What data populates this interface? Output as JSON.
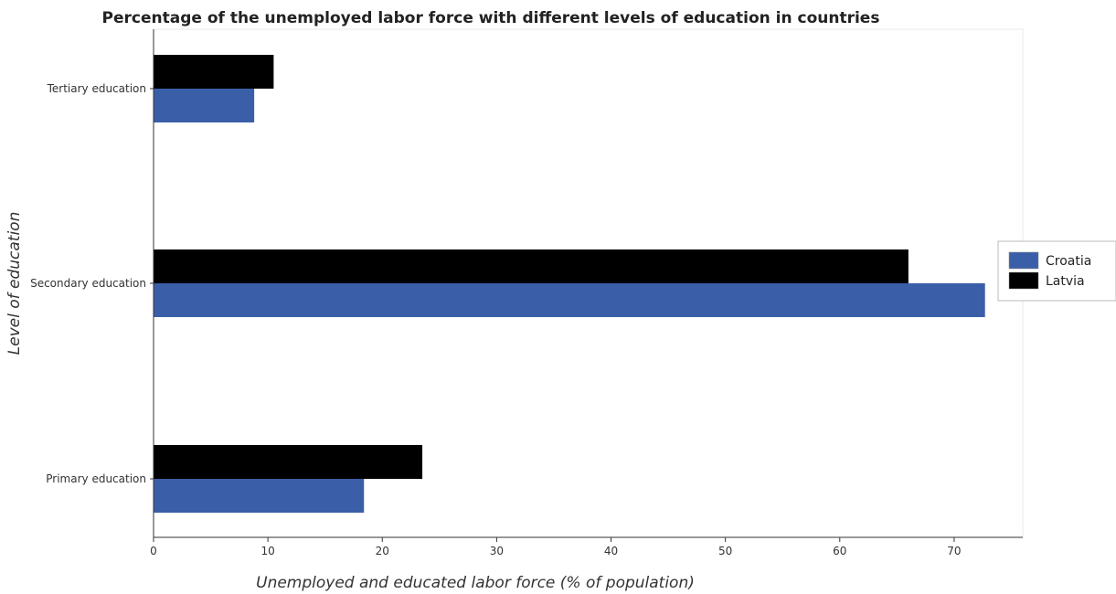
{
  "chart_data": {
    "type": "bar",
    "orientation": "horizontal",
    "title": "Percentage of the unemployed labor force with different levels of education in countries",
    "xlabel": "Unemployed and educated labor force (% of population)",
    "ylabel": "Level of education",
    "categories": [
      "Primary education",
      "Secondary education",
      "Tertiary education"
    ],
    "xlim": [
      0,
      76
    ],
    "x_ticks": [
      0,
      10,
      20,
      30,
      40,
      50,
      60,
      70
    ],
    "grid": false,
    "legend_position": "right",
    "series": [
      {
        "name": "Croatia",
        "color": "#3a5fa8",
        "values": [
          18.4,
          72.7,
          8.8
        ]
      },
      {
        "name": "Latvia",
        "color": "#000000",
        "values": [
          23.5,
          66.0,
          10.5
        ]
      }
    ]
  }
}
